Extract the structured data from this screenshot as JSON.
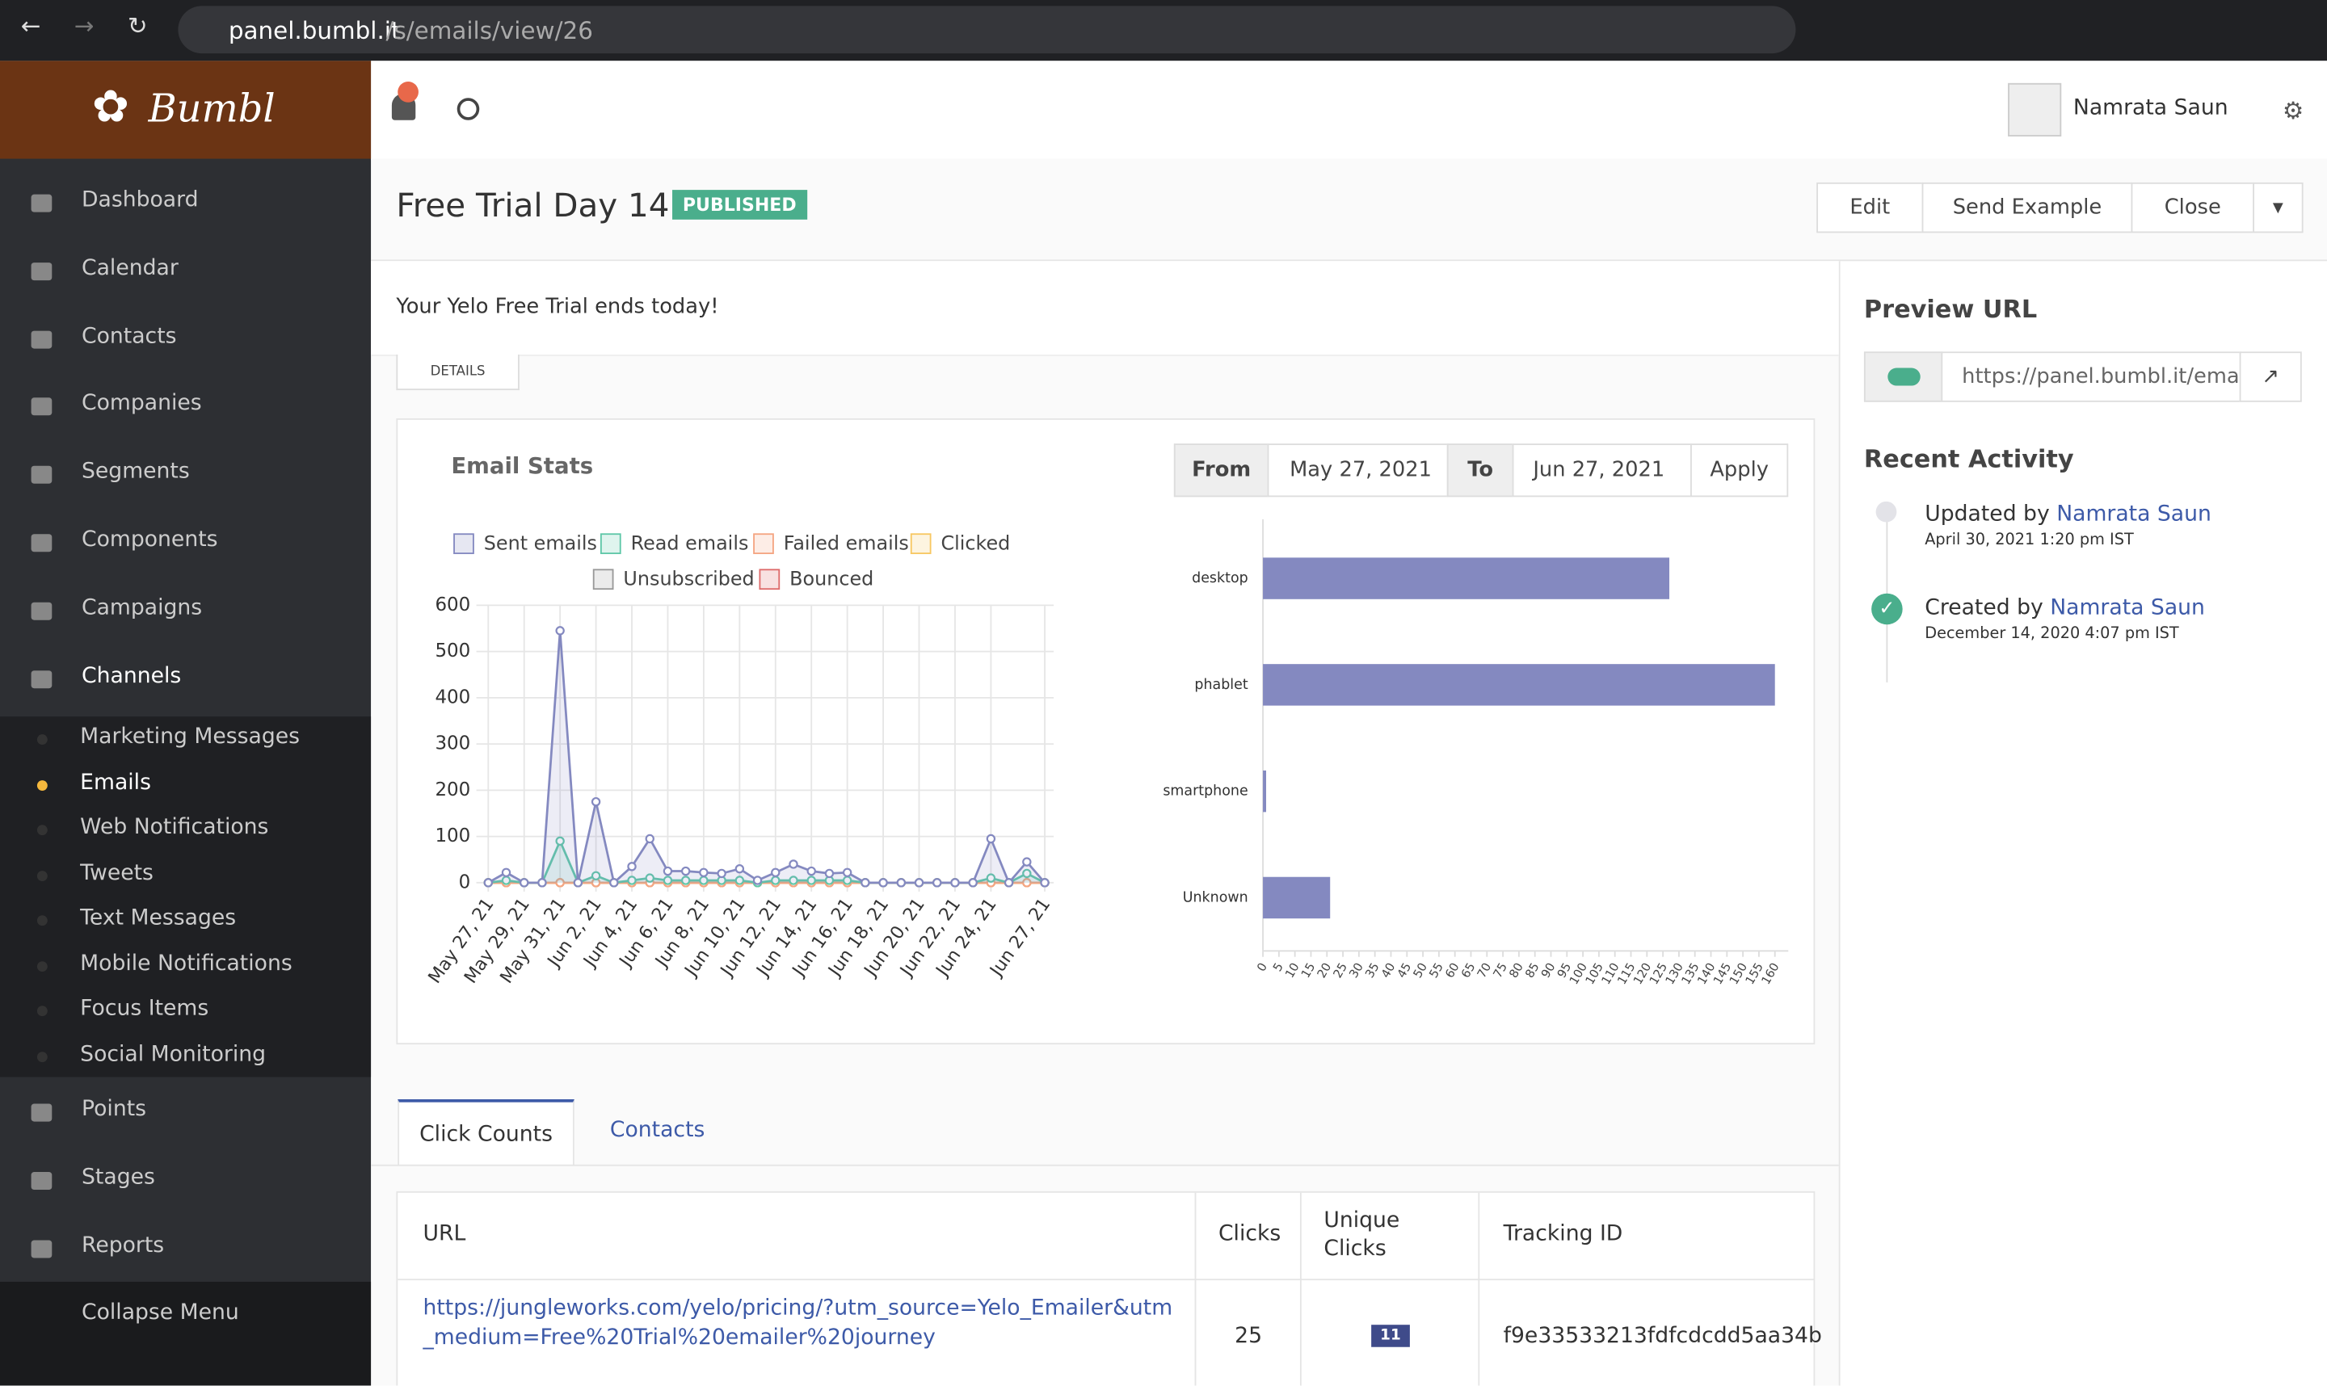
{
  "browser": {
    "url_host": "panel.bumbl.it",
    "url_path": "/s/emails/view/26"
  },
  "brand": "Bumbl",
  "sidebar": {
    "items": [
      "Dashboard",
      "Calendar",
      "Contacts",
      "Companies",
      "Segments",
      "Components",
      "Campaigns",
      "Channels"
    ],
    "channels_sub": [
      "Marketing Messages",
      "Emails",
      "Web Notifications",
      "Tweets",
      "Text Messages",
      "Mobile Notifications",
      "Focus Items",
      "Social Monitoring"
    ],
    "items_after": [
      "Points",
      "Stages",
      "Reports"
    ],
    "collapse": "Collapse Menu"
  },
  "user": "Namrata Saun",
  "header": {
    "title": "Free Trial Day 14",
    "badge": "PUBLISHED",
    "buttons": [
      "Edit",
      "Send Example",
      "Close"
    ]
  },
  "subject": "Your Yelo Free Trial ends today!",
  "details": "DETAILS",
  "stats": {
    "title": "Email Stats",
    "from_label": "From",
    "from": "May 27, 2021",
    "to_label": "To",
    "to": "Jun 27, 2021",
    "apply": "Apply"
  },
  "chart_data": [
    {
      "type": "line",
      "categories": [
        "May 27, 21",
        null,
        "May 29, 21",
        null,
        "May 31, 21",
        null,
        "Jun 2, 21",
        null,
        "Jun 4, 21",
        null,
        "Jun 6, 21",
        null,
        "Jun 8, 21",
        null,
        "Jun 10, 21",
        null,
        "Jun 12, 21",
        null,
        "Jun 14, 21",
        null,
        "Jun 16, 21",
        null,
        "Jun 18, 21",
        null,
        "Jun 20, 21",
        null,
        "Jun 22, 21",
        null,
        "Jun 24, 21",
        null,
        null,
        "Jun 27, 21"
      ],
      "series": [
        {
          "name": "Sent emails",
          "color": "#8489c0",
          "values": [
            0,
            22,
            0,
            0,
            545,
            0,
            175,
            0,
            35,
            95,
            25,
            25,
            22,
            20,
            30,
            5,
            22,
            40,
            25,
            20,
            22,
            0,
            0,
            0,
            0,
            0,
            0,
            0,
            95,
            0,
            45,
            0
          ]
        },
        {
          "name": "Read emails",
          "color": "#5fc7a8",
          "values": [
            0,
            5,
            0,
            0,
            90,
            0,
            15,
            0,
            5,
            10,
            5,
            5,
            5,
            5,
            5,
            0,
            5,
            5,
            5,
            5,
            5,
            0,
            0,
            0,
            0,
            0,
            0,
            0,
            10,
            0,
            20,
            0
          ]
        },
        {
          "name": "Failed emails",
          "color": "#f4a582",
          "values": [
            0,
            0,
            0,
            0,
            0,
            0,
            0,
            0,
            0,
            0,
            0,
            0,
            0,
            0,
            0,
            0,
            0,
            0,
            0,
            0,
            0,
            0,
            0,
            0,
            0,
            0,
            0,
            0,
            0,
            0,
            0,
            0
          ]
        },
        {
          "name": "Clicked",
          "color": "#f7c762",
          "values": [
            0,
            0,
            0,
            0,
            0,
            0,
            0,
            0,
            0,
            0,
            0,
            0,
            0,
            0,
            0,
            0,
            0,
            0,
            0,
            0,
            0,
            0,
            0,
            0,
            0,
            0,
            0,
            0,
            0,
            0,
            0,
            0
          ]
        },
        {
          "name": "Unsubscribed",
          "color": "#999999",
          "values": [
            0,
            0,
            0,
            0,
            0,
            0,
            0,
            0,
            0,
            0,
            0,
            0,
            0,
            0,
            0,
            0,
            0,
            0,
            0,
            0,
            0,
            0,
            0,
            0,
            0,
            0,
            0,
            0,
            0,
            0,
            0,
            0
          ]
        },
        {
          "name": "Bounced",
          "color": "#de6b6b",
          "values": [
            0,
            0,
            0,
            0,
            0,
            0,
            0,
            0,
            0,
            0,
            0,
            0,
            0,
            0,
            0,
            0,
            0,
            0,
            0,
            0,
            0,
            0,
            0,
            0,
            0,
            0,
            0,
            0,
            0,
            0,
            0,
            0
          ]
        }
      ],
      "ylim": [
        0,
        600
      ],
      "yticks": [
        0,
        100,
        200,
        300,
        400,
        500,
        600
      ],
      "grid": true
    },
    {
      "type": "hbar",
      "categories": [
        "desktop",
        "phablet",
        "smartphone",
        "Unknown"
      ],
      "values": [
        127,
        160,
        1,
        21
      ],
      "color": "#8489c0",
      "xlim": [
        0,
        160
      ],
      "xticks": [
        0,
        5,
        10,
        15,
        20,
        25,
        30,
        35,
        40,
        45,
        50,
        55,
        60,
        65,
        70,
        75,
        80,
        85,
        90,
        95,
        100,
        105,
        110,
        115,
        120,
        125,
        130,
        135,
        140,
        145,
        150,
        155,
        160
      ]
    }
  ],
  "tabs": [
    "Click Counts",
    "Contacts"
  ],
  "table": {
    "header": [
      "URL",
      "Clicks",
      "Unique Clicks",
      "Tracking ID"
    ],
    "rows": [
      [
        "https://jungleworks.com/yelo/pricing/?utm_source=Yelo_Emailer&utm_medium=Free%20Trial%20emailer%20journey",
        "25",
        "11",
        "f9e33533213fdfcdcdd5aa34b"
      ]
    ]
  },
  "preview": {
    "title": "Preview URL",
    "url": "https://panel.bumbl.it/ema"
  },
  "activity": {
    "title": "Recent Activity",
    "items": [
      {
        "action": "Updated by",
        "user": "Namrata Saun",
        "time": "April 30, 2021 1:20 pm IST"
      },
      {
        "action": "Created by",
        "user": "Namrata Saun",
        "time": "December 14, 2020 4:07 pm IST"
      }
    ]
  }
}
